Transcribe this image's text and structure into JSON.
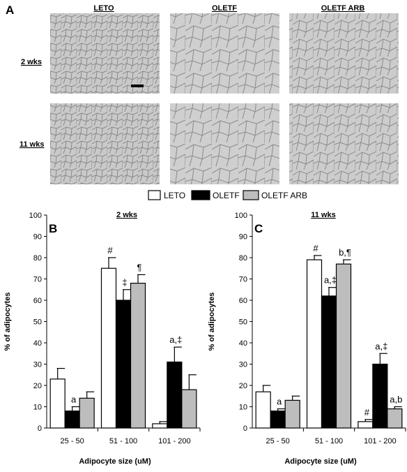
{
  "panel_a": {
    "letter": "A",
    "columns": [
      "LETO",
      "OLETF",
      "OLETF ARB"
    ],
    "rows": [
      "2 wks",
      "11 wks"
    ]
  },
  "legend": {
    "entries": [
      {
        "label": "LETO",
        "color": "#ffffff"
      },
      {
        "label": "OLETF",
        "color": "#000000"
      },
      {
        "label": "OLETF ARB",
        "color": "#bdbdbd"
      }
    ]
  },
  "chart_data": [
    {
      "type": "bar",
      "panel": "B",
      "title": "2 wks",
      "xlabel": "Adipocyte size (uM)",
      "ylabel": "% of adipocytes",
      "ylim": [
        0,
        100
      ],
      "yticks": [
        0,
        10,
        20,
        30,
        40,
        50,
        60,
        70,
        80,
        90,
        100
      ],
      "categories": [
        "25 - 50",
        "51 - 100",
        "101 - 200"
      ],
      "series": [
        {
          "name": "LETO",
          "color": "#ffffff",
          "values": [
            23,
            75,
            2
          ],
          "errors": [
            5,
            5,
            1
          ],
          "annotations": [
            "",
            "#",
            ""
          ]
        },
        {
          "name": "OLETF",
          "color": "#000000",
          "values": [
            8,
            60,
            31
          ],
          "errors": [
            2,
            5,
            7
          ],
          "annotations": [
            "a",
            "‡",
            "a,‡"
          ]
        },
        {
          "name": "OLETF ARB",
          "color": "#bdbdbd",
          "values": [
            14,
            68,
            18
          ],
          "errors": [
            3,
            4,
            7
          ],
          "annotations": [
            "",
            "¶",
            ""
          ]
        }
      ]
    },
    {
      "type": "bar",
      "panel": "C",
      "title": "11 wks",
      "xlabel": "Adipocyte size (uM)",
      "ylabel": "% of adipocytes",
      "ylim": [
        0,
        100
      ],
      "yticks": [
        0,
        10,
        20,
        30,
        40,
        50,
        60,
        70,
        80,
        90,
        100
      ],
      "categories": [
        "25 - 50",
        "51 - 100",
        "101 - 200"
      ],
      "series": [
        {
          "name": "LETO",
          "color": "#ffffff",
          "values": [
            17,
            79,
            3
          ],
          "errors": [
            3,
            2,
            1
          ],
          "annotations": [
            "",
            "#",
            "#"
          ]
        },
        {
          "name": "OLETF",
          "color": "#000000",
          "values": [
            8,
            62,
            30
          ],
          "errors": [
            1,
            4,
            5
          ],
          "annotations": [
            "a",
            "a,‡",
            "a,‡"
          ]
        },
        {
          "name": "OLETF ARB",
          "color": "#bdbdbd",
          "values": [
            13,
            77,
            9
          ],
          "errors": [
            2,
            2,
            1
          ],
          "annotations": [
            "",
            "b,¶",
            "a,b"
          ]
        }
      ]
    }
  ]
}
